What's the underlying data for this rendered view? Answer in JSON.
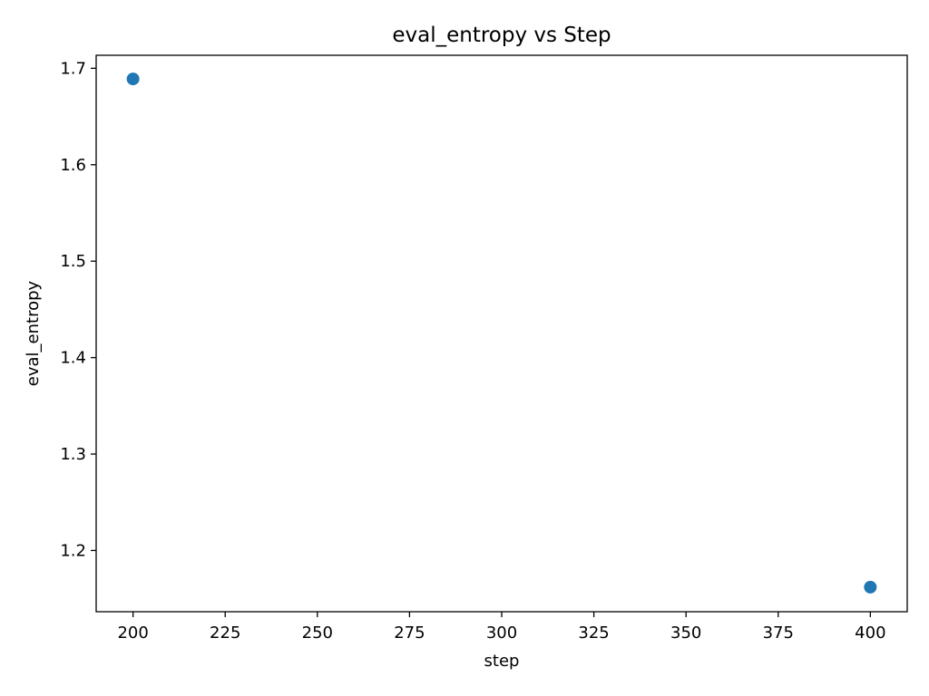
{
  "chart_data": {
    "type": "scatter",
    "title": "eval_entropy vs Step",
    "xlabel": "step",
    "ylabel": "eval_entropy",
    "xlim": [
      190,
      410
    ],
    "ylim": [
      1.1365,
      1.7135
    ],
    "xticks": [
      200,
      225,
      250,
      275,
      300,
      325,
      350,
      375,
      400
    ],
    "yticks": [
      1.2,
      1.3,
      1.4,
      1.5,
      1.6,
      1.7
    ],
    "grid": false,
    "legend": "none",
    "series": [
      {
        "color": "#1f77b4",
        "points": [
          {
            "x": 200,
            "y": 1.689
          },
          {
            "x": 400,
            "y": 1.162
          }
        ]
      }
    ]
  }
}
